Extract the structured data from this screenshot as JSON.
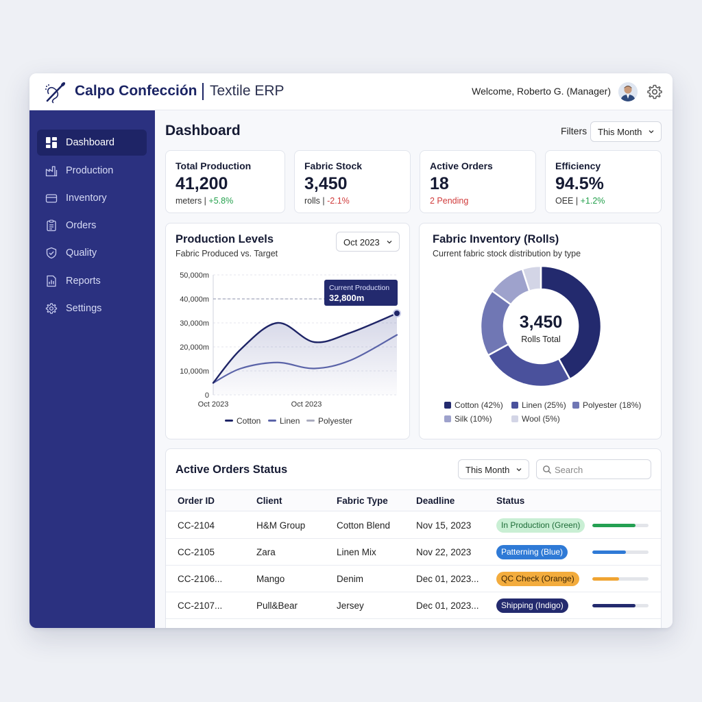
{
  "header": {
    "brand": "Calpo Confección",
    "subtitle": "Textile ERP",
    "welcome": "Welcome, Roberto G. (Manager)"
  },
  "sidebar": {
    "items": [
      {
        "label": "Dashboard",
        "icon": "dashboard-grid-icon",
        "active": true
      },
      {
        "label": "Production",
        "icon": "factory-icon",
        "active": false
      },
      {
        "label": "Inventory",
        "icon": "box-icon",
        "active": false
      },
      {
        "label": "Orders",
        "icon": "clipboard-icon",
        "active": false
      },
      {
        "label": "Quality",
        "icon": "shield-check-icon",
        "active": false
      },
      {
        "label": "Reports",
        "icon": "report-icon",
        "active": false
      },
      {
        "label": "Settings",
        "icon": "gear-icon",
        "active": false
      }
    ]
  },
  "main": {
    "title": "Dashboard",
    "filters_label": "Filters",
    "filter_value": "This Month"
  },
  "kpis": [
    {
      "title": "Total Production",
      "value": "41,200",
      "unit": "meters |",
      "delta": "+5.8%",
      "delta_kind": "pos"
    },
    {
      "title": "Fabric Stock",
      "value": "3,450",
      "unit": "rolls |",
      "delta": "-2.1%",
      "delta_kind": "neg"
    },
    {
      "title": "Active Orders",
      "value": "18",
      "unit": "",
      "delta": "2 Pending",
      "delta_kind": "neg"
    },
    {
      "title": "Efficiency",
      "value": "94.5%",
      "unit": "OEE |",
      "delta": "+1.2%",
      "delta_kind": "pos"
    }
  ],
  "production_card": {
    "title": "Production Levels",
    "subtitle": "Fabric Produced vs. Target",
    "period": "Oct 2023",
    "tooltip_label": "Current Production",
    "tooltip_value": "32,800m"
  },
  "inventory_card": {
    "title": "Fabric Inventory (Rolls)",
    "subtitle": "Current fabric stock distribution by type",
    "total": "3,450",
    "total_label": "Rolls Total"
  },
  "chart_data": [
    {
      "type": "area",
      "title": "Production Levels",
      "subtitle": "Fabric Produced vs. Target",
      "y_ticks": [
        "50,000m",
        "40,000m",
        "30,000m",
        "20,000m",
        "10,000m",
        "0"
      ],
      "ylim": [
        0,
        50000
      ],
      "x_ticks": [
        "Oct 2023",
        "Oct 2023"
      ],
      "target": 40000,
      "series": [
        {
          "name": "Cotton",
          "color": "#1e2466",
          "x": [
            0,
            0.15,
            0.35,
            0.55,
            0.75,
            1.0
          ],
          "y": [
            5000,
            19000,
            30000,
            22000,
            26000,
            34000
          ]
        },
        {
          "name": "Linen",
          "color": "#5a63a8",
          "x": [
            0,
            0.15,
            0.35,
            0.55,
            0.75,
            1.0
          ],
          "y": [
            5000,
            11000,
            13500,
            11000,
            14500,
            25000
          ]
        },
        {
          "name": "Polyester",
          "color": "#a9abbe",
          "x": [],
          "y": []
        }
      ]
    },
    {
      "type": "pie",
      "title": "Fabric Inventory (Rolls)",
      "subtitle": "Current fabric stock distribution by type",
      "slices": [
        {
          "name": "Cotton",
          "label": "Cotton (42%)",
          "value": 42,
          "color": "#232a6e"
        },
        {
          "name": "Linen",
          "label": "Linen (25%)",
          "value": 25,
          "color": "#4a519c"
        },
        {
          "name": "Polyester",
          "label": "Polyester (18%)",
          "value": 18,
          "color": "#7077b4"
        },
        {
          "name": "Silk",
          "label": "Silk (10%)",
          "value": 10,
          "color": "#9ea2cc"
        },
        {
          "name": "Wool",
          "label": "Wool (5%)",
          "value": 5,
          "color": "#d3d5e6"
        }
      ]
    }
  ],
  "orders": {
    "title": "Active Orders Status",
    "filter": "This Month",
    "search_placeholder": "Search",
    "columns": [
      "Order ID",
      "Client",
      "Fabric Type",
      "Deadline",
      "Status"
    ],
    "rows": [
      {
        "id": "CC-2104",
        "client": "H&M Group",
        "fabric": "Cotton Blend",
        "deadline": "Nov 15, 2023",
        "status": "In Production (Green)",
        "badge_bg": "#c9efd4",
        "badge_fg": "#1c6b36",
        "bar_color": "#24a052",
        "progress": 0.77
      },
      {
        "id": "CC-2105",
        "client": "Zara",
        "fabric": "Linen Mix",
        "deadline": "Nov 22, 2023",
        "status": "Patterning (Blue)",
        "badge_bg": "#2f7ad6",
        "badge_fg": "#ffffff",
        "bar_color": "#2f7ad6",
        "progress": 0.6
      },
      {
        "id": "CC-2106...",
        "client": "Mango",
        "fabric": "Denim",
        "deadline": "Dec 01, 2023...",
        "status": "QC Check (Orange)",
        "badge_bg": "#f3ac3d",
        "badge_fg": "#3a2405",
        "bar_color": "#f0a432",
        "progress": 0.48
      },
      {
        "id": "CC-2107...",
        "client": "Pull&Bear",
        "fabric": "Jersey",
        "deadline": "Dec 01, 2023...",
        "status": "Shipping (Indigo)",
        "badge_bg": "#232a6e",
        "badge_fg": "#ffffff",
        "bar_color": "#232a6e",
        "progress": 0.77
      }
    ]
  }
}
